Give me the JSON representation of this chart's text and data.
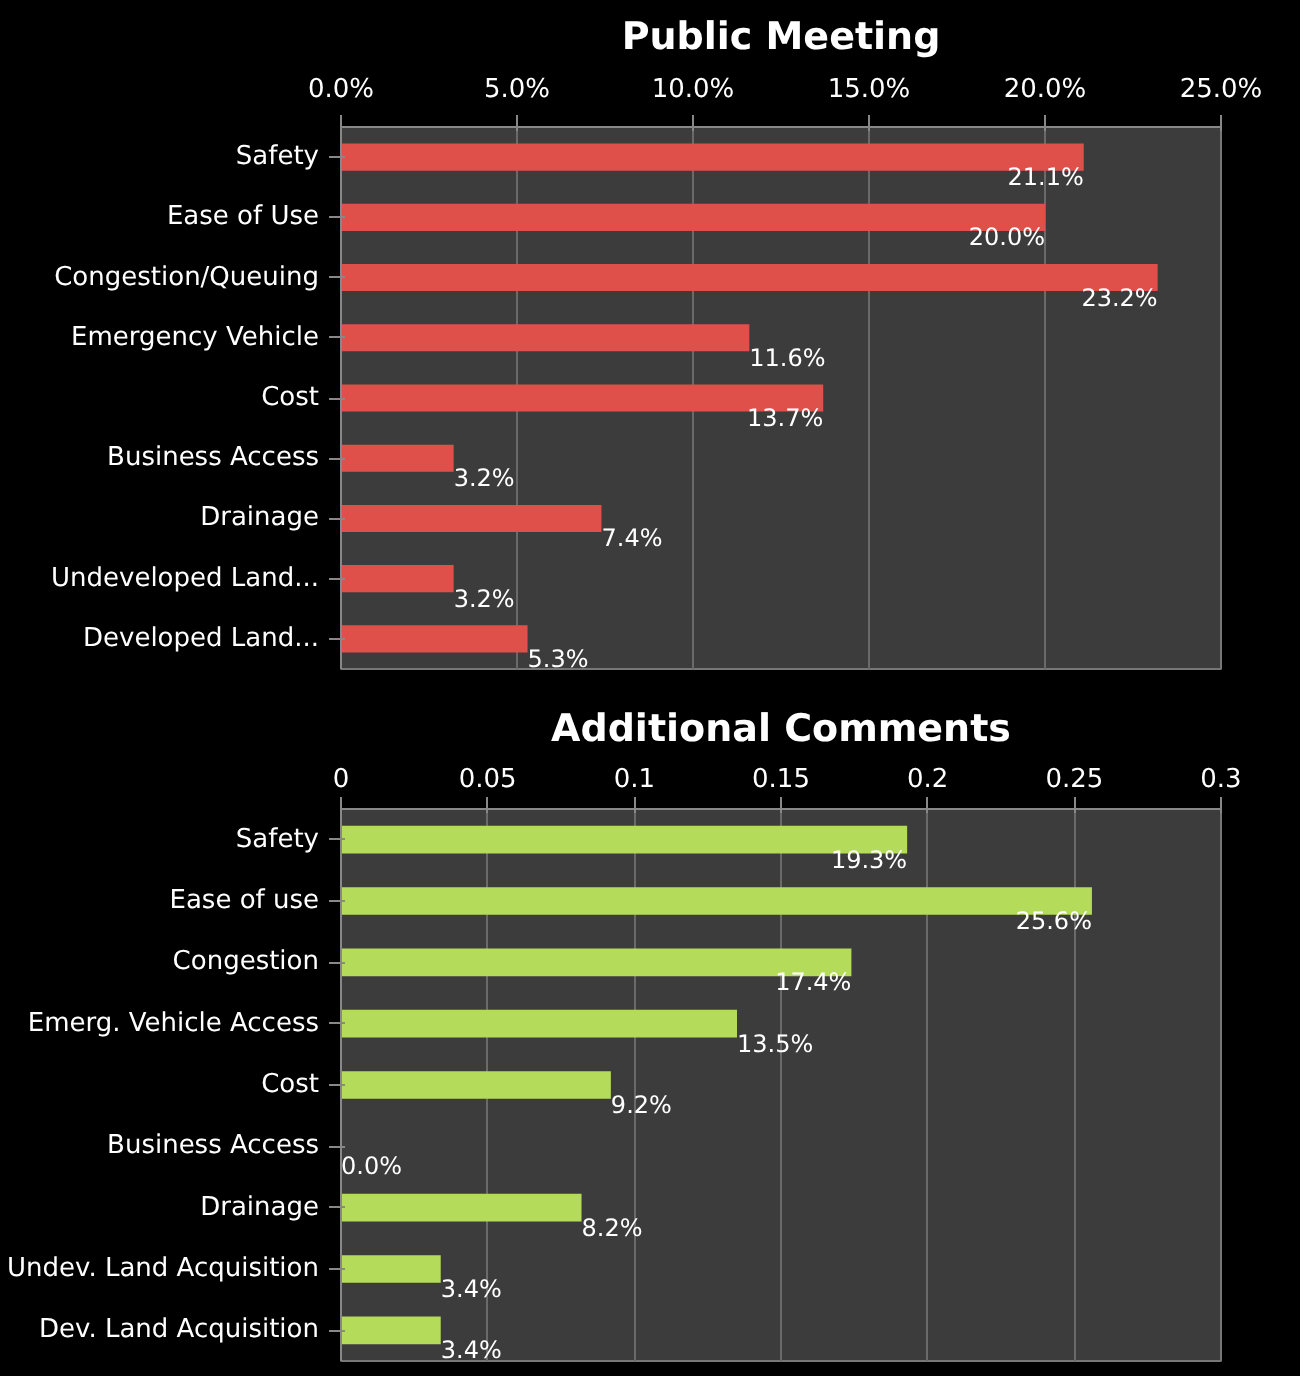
{
  "chart_data": [
    {
      "type": "bar",
      "title": "Public Meeting",
      "orientation": "horizontal",
      "categories": [
        "Safety",
        "Ease of Use",
        "Congestion/Queuing",
        "Emergency Vehicle",
        "Cost",
        "Business Access",
        "Drainage",
        "Undeveloped Land...",
        "Developed Land..."
      ],
      "values": [
        21.1,
        20.0,
        23.2,
        11.6,
        13.7,
        3.2,
        7.4,
        3.2,
        5.3
      ],
      "value_labels": [
        "21.1%",
        "20.0%",
        "23.2%",
        "11.6%",
        "13.7%",
        "3.2%",
        "7.4%",
        "3.2%",
        "5.3%"
      ],
      "color": "#e0504a",
      "xlim": [
        0,
        25
      ],
      "xticks": [
        {
          "value": 0,
          "label": "0.0%"
        },
        {
          "value": 5,
          "label": "5.0%"
        },
        {
          "value": 10,
          "label": "10.0%"
        },
        {
          "value": 15,
          "label": "15.0%"
        },
        {
          "value": 20,
          "label": "20.0%"
        },
        {
          "value": 25,
          "label": "25.0%"
        }
      ],
      "grid": "x"
    },
    {
      "type": "bar",
      "title": "Additional Comments",
      "orientation": "horizontal",
      "categories": [
        "Safety",
        "Ease of use",
        "Congestion",
        "Emerg. Vehicle Access",
        "Cost",
        "Business Access",
        "Drainage",
        "Undev. Land Acquisition",
        "Dev. Land Acquisition"
      ],
      "values": [
        0.193,
        0.256,
        0.174,
        0.135,
        0.092,
        0.0,
        0.082,
        0.034,
        0.034
      ],
      "value_labels": [
        "19.3%",
        "25.6%",
        "17.4%",
        "13.5%",
        "9.2%",
        "0.0%",
        "8.2%",
        "3.4%",
        "3.4%"
      ],
      "color": "#b4dc5a",
      "xlim": [
        0,
        0.3
      ],
      "xticks": [
        0,
        0.05,
        0.1,
        0.15,
        0.2,
        0.25,
        0.3
      ],
      "grid": "x"
    }
  ]
}
